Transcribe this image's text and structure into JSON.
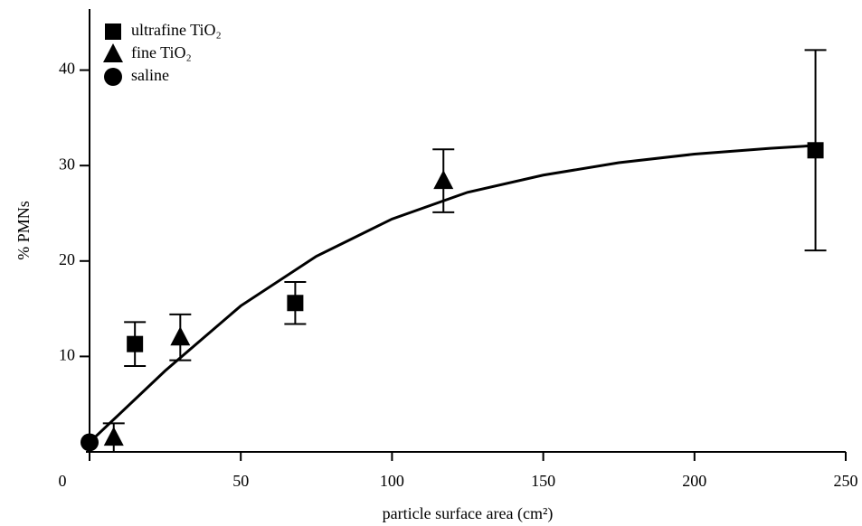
{
  "chart_data": {
    "type": "scatter",
    "xlabel": "particle surface area (cm²)",
    "ylabel": "% PMNs",
    "xlim": [
      0,
      250
    ],
    "xticks": [
      0,
      50,
      100,
      150,
      200,
      250
    ],
    "ylim": [
      0,
      46.4
    ],
    "yticks": [
      10,
      20,
      30,
      40
    ],
    "legend": "upper left",
    "series": [
      {
        "name": "ultrafine TiO₂",
        "marker": "square",
        "color": "#000000",
        "x": [
          15,
          68,
          240
        ],
        "values": [
          11.3,
          15.6,
          31.6
        ],
        "errors": [
          2.3,
          2.2,
          10.5
        ]
      },
      {
        "name": "fine TiO₂",
        "marker": "triangle",
        "color": "#000000",
        "x": [
          8,
          30,
          117
        ],
        "values": [
          1.5,
          12.0,
          28.4
        ],
        "errors": [
          1.5,
          2.4,
          3.3
        ]
      },
      {
        "name": "saline",
        "marker": "circle",
        "color": "#000000",
        "x": [
          0
        ],
        "values": [
          1.0
        ]
      },
      {
        "marker": "line",
        "color": "#000000",
        "x": [
          0,
          25,
          50,
          75,
          100,
          125,
          150,
          175,
          200,
          225,
          240
        ],
        "values": [
          1.0,
          8.5,
          15.3,
          20.5,
          24.4,
          27.2,
          29.0,
          30.3,
          31.2,
          31.8,
          32.1
        ]
      }
    ]
  }
}
